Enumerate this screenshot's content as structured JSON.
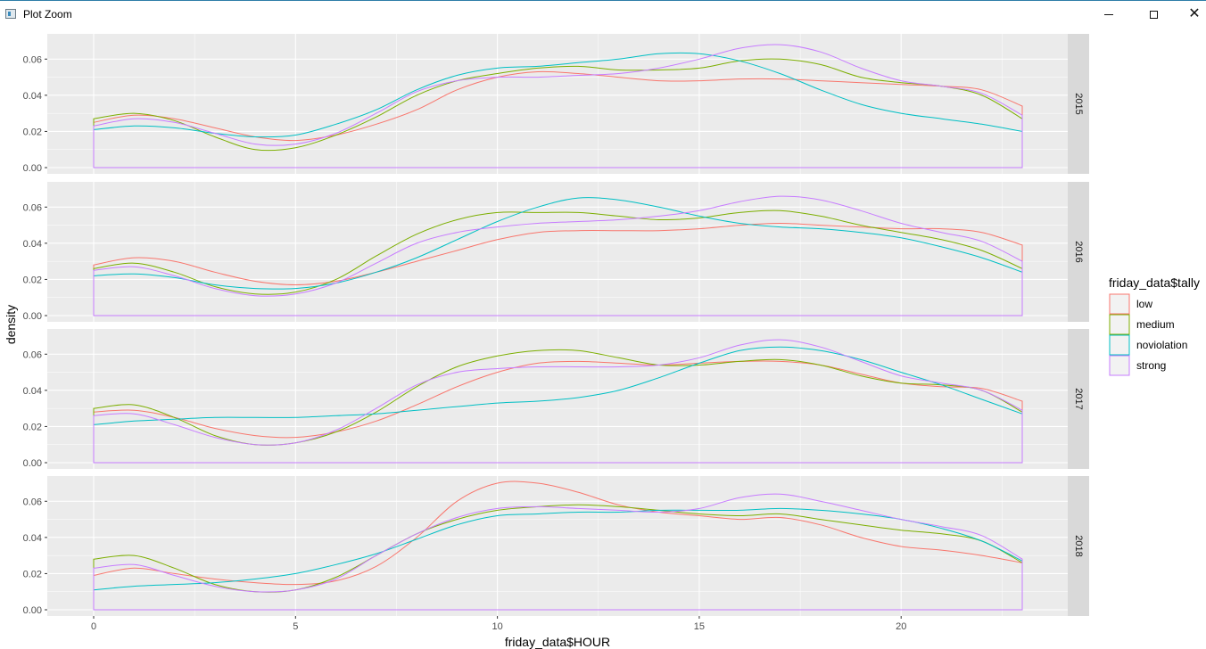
{
  "window": {
    "title": "Plot Zoom",
    "icon": "plot-window-icon",
    "controls": [
      "minimize-icon",
      "maximize-icon",
      "close-icon"
    ]
  },
  "chart_data": {
    "type": "line",
    "subtype": "density",
    "xlabel": "friday_data$HOUR",
    "ylabel": "density",
    "xlim": [
      0,
      23
    ],
    "ylim": [
      0,
      0.07
    ],
    "xticks": [
      0,
      5,
      10,
      15,
      20
    ],
    "yticks": [
      0.0,
      0.02,
      0.04,
      0.06
    ],
    "ytick_labels": [
      "0.00",
      "0.02",
      "0.04",
      "0.06"
    ],
    "facet_position": "right",
    "legend": {
      "title": "friday_data$tally",
      "position": "right",
      "entries": [
        {
          "name": "low",
          "color": "#F8766D"
        },
        {
          "name": "medium",
          "color": "#7CAE00"
        },
        {
          "name": "noviolation",
          "color": "#00BFC4"
        },
        {
          "name": "strong",
          "color": "#C77CFF"
        }
      ]
    },
    "grid": true,
    "background": "#EBEBEB",
    "x": [
      0,
      1,
      2,
      3,
      4,
      5,
      6,
      7,
      8,
      9,
      10,
      11,
      12,
      13,
      14,
      15,
      16,
      17,
      18,
      19,
      20,
      21,
      22,
      23
    ],
    "panels": [
      {
        "label": "2015",
        "series": [
          {
            "name": "low",
            "values": [
              0.025,
              0.029,
              0.027,
              0.022,
              0.017,
              0.015,
              0.018,
              0.024,
              0.032,
              0.043,
              0.05,
              0.053,
              0.052,
              0.05,
              0.048,
              0.048,
              0.049,
              0.049,
              0.048,
              0.047,
              0.046,
              0.045,
              0.043,
              0.034
            ]
          },
          {
            "name": "medium",
            "values": [
              0.027,
              0.03,
              0.026,
              0.017,
              0.01,
              0.011,
              0.018,
              0.028,
              0.04,
              0.048,
              0.052,
              0.055,
              0.056,
              0.054,
              0.054,
              0.055,
              0.059,
              0.06,
              0.057,
              0.05,
              0.047,
              0.045,
              0.04,
              0.027
            ]
          },
          {
            "name": "noviolation",
            "values": [
              0.021,
              0.023,
              0.022,
              0.019,
              0.017,
              0.018,
              0.024,
              0.032,
              0.043,
              0.051,
              0.055,
              0.056,
              0.058,
              0.06,
              0.063,
              0.063,
              0.059,
              0.052,
              0.043,
              0.035,
              0.03,
              0.027,
              0.024,
              0.02
            ]
          },
          {
            "name": "strong",
            "values": [
              0.023,
              0.027,
              0.025,
              0.019,
              0.013,
              0.013,
              0.019,
              0.03,
              0.042,
              0.048,
              0.05,
              0.05,
              0.051,
              0.052,
              0.055,
              0.06,
              0.066,
              0.068,
              0.064,
              0.055,
              0.048,
              0.045,
              0.041,
              0.029
            ]
          }
        ]
      },
      {
        "label": "2016",
        "series": [
          {
            "name": "low",
            "values": [
              0.028,
              0.032,
              0.03,
              0.024,
              0.019,
              0.017,
              0.019,
              0.024,
              0.03,
              0.036,
              0.042,
              0.046,
              0.047,
              0.047,
              0.047,
              0.048,
              0.05,
              0.051,
              0.05,
              0.049,
              0.048,
              0.048,
              0.046,
              0.039
            ]
          },
          {
            "name": "medium",
            "values": [
              0.026,
              0.029,
              0.024,
              0.016,
              0.012,
              0.013,
              0.02,
              0.033,
              0.045,
              0.053,
              0.057,
              0.057,
              0.057,
              0.055,
              0.053,
              0.054,
              0.057,
              0.058,
              0.055,
              0.05,
              0.046,
              0.042,
              0.036,
              0.026
            ]
          },
          {
            "name": "noviolation",
            "values": [
              0.022,
              0.023,
              0.021,
              0.017,
              0.015,
              0.015,
              0.018,
              0.024,
              0.032,
              0.042,
              0.052,
              0.06,
              0.065,
              0.064,
              0.06,
              0.055,
              0.051,
              0.049,
              0.048,
              0.046,
              0.043,
              0.038,
              0.032,
              0.024
            ]
          },
          {
            "name": "strong",
            "values": [
              0.025,
              0.027,
              0.022,
              0.015,
              0.011,
              0.012,
              0.018,
              0.029,
              0.04,
              0.046,
              0.049,
              0.051,
              0.052,
              0.053,
              0.055,
              0.058,
              0.063,
              0.066,
              0.064,
              0.058,
              0.051,
              0.046,
              0.041,
              0.03
            ]
          }
        ]
      },
      {
        "label": "2017",
        "series": [
          {
            "name": "low",
            "values": [
              0.028,
              0.029,
              0.025,
              0.019,
              0.015,
              0.014,
              0.017,
              0.023,
              0.032,
              0.042,
              0.05,
              0.055,
              0.056,
              0.055,
              0.054,
              0.055,
              0.056,
              0.056,
              0.054,
              0.049,
              0.044,
              0.042,
              0.041,
              0.034
            ]
          },
          {
            "name": "medium",
            "values": [
              0.03,
              0.032,
              0.025,
              0.015,
              0.01,
              0.011,
              0.017,
              0.028,
              0.042,
              0.053,
              0.059,
              0.062,
              0.062,
              0.058,
              0.054,
              0.054,
              0.056,
              0.057,
              0.054,
              0.048,
              0.044,
              0.043,
              0.04,
              0.028
            ]
          },
          {
            "name": "noviolation",
            "values": [
              0.021,
              0.023,
              0.024,
              0.025,
              0.025,
              0.025,
              0.026,
              0.027,
              0.029,
              0.031,
              0.033,
              0.034,
              0.036,
              0.04,
              0.047,
              0.055,
              0.062,
              0.064,
              0.062,
              0.057,
              0.05,
              0.043,
              0.035,
              0.027
            ]
          },
          {
            "name": "strong",
            "values": [
              0.026,
              0.027,
              0.021,
              0.014,
              0.01,
              0.011,
              0.018,
              0.03,
              0.043,
              0.05,
              0.052,
              0.053,
              0.053,
              0.053,
              0.054,
              0.058,
              0.065,
              0.068,
              0.064,
              0.056,
              0.048,
              0.044,
              0.04,
              0.029
            ]
          }
        ]
      },
      {
        "label": "2018",
        "series": [
          {
            "name": "low",
            "values": [
              0.019,
              0.023,
              0.02,
              0.017,
              0.015,
              0.014,
              0.016,
              0.024,
              0.04,
              0.06,
              0.07,
              0.07,
              0.065,
              0.058,
              0.054,
              0.052,
              0.05,
              0.051,
              0.047,
              0.04,
              0.035,
              0.033,
              0.03,
              0.026
            ]
          },
          {
            "name": "medium",
            "values": [
              0.028,
              0.03,
              0.023,
              0.014,
              0.01,
              0.011,
              0.018,
              0.03,
              0.042,
              0.05,
              0.055,
              0.057,
              0.058,
              0.057,
              0.055,
              0.053,
              0.052,
              0.053,
              0.05,
              0.047,
              0.044,
              0.042,
              0.038,
              0.026
            ]
          },
          {
            "name": "noviolation",
            "values": [
              0.011,
              0.013,
              0.014,
              0.015,
              0.017,
              0.02,
              0.025,
              0.031,
              0.039,
              0.047,
              0.052,
              0.053,
              0.054,
              0.054,
              0.055,
              0.055,
              0.055,
              0.056,
              0.055,
              0.053,
              0.05,
              0.045,
              0.038,
              0.027
            ]
          },
          {
            "name": "strong",
            "values": [
              0.023,
              0.025,
              0.019,
              0.013,
              0.01,
              0.011,
              0.017,
              0.03,
              0.042,
              0.051,
              0.056,
              0.057,
              0.056,
              0.055,
              0.054,
              0.056,
              0.062,
              0.064,
              0.06,
              0.055,
              0.05,
              0.046,
              0.041,
              0.028
            ]
          }
        ]
      }
    ]
  }
}
